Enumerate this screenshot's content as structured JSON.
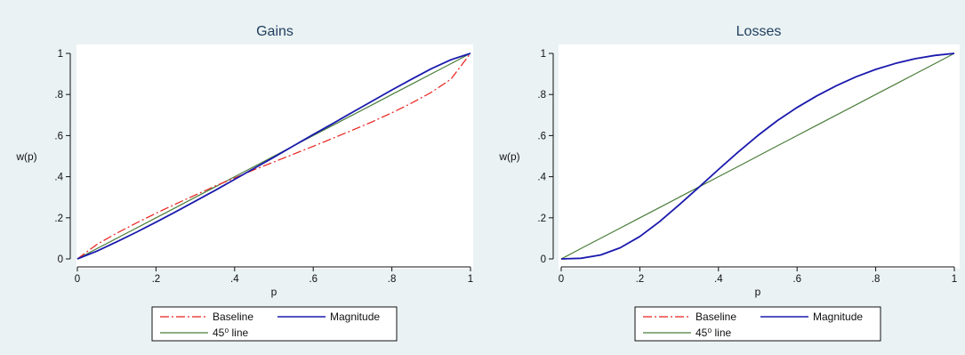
{
  "chart_data": [
    {
      "type": "line",
      "title": "Gains",
      "xlabel": "p",
      "ylabel": "w(p)",
      "xlim": [
        0,
        1
      ],
      "ylim": [
        0,
        1
      ],
      "xticks": [
        "0",
        ".2",
        ".4",
        ".6",
        ".8",
        "1"
      ],
      "yticks": [
        "0",
        ".2",
        ".4",
        ".6",
        ".8",
        "1"
      ],
      "grid": false,
      "legend_position": "bottom",
      "x": [
        0,
        0.05,
        0.1,
        0.15,
        0.2,
        0.25,
        0.3,
        0.35,
        0.4,
        0.45,
        0.5,
        0.55,
        0.6,
        0.65,
        0.7,
        0.75,
        0.8,
        0.85,
        0.9,
        0.95,
        1
      ],
      "series": [
        {
          "name": "Baseline",
          "color": "#e8201c",
          "dash": "dashdot",
          "values": [
            0,
            0.071,
            0.125,
            0.175,
            0.222,
            0.267,
            0.311,
            0.354,
            0.394,
            0.434,
            0.472,
            0.51,
            0.548,
            0.587,
            0.627,
            0.667,
            0.711,
            0.758,
            0.81,
            0.874,
            1
          ]
        },
        {
          "name": "Magnitude",
          "color": "#1a1aae",
          "dash": "solid",
          "values": [
            0,
            0.038,
            0.083,
            0.13,
            0.179,
            0.229,
            0.281,
            0.333,
            0.387,
            0.441,
            0.495,
            0.55,
            0.605,
            0.659,
            0.714,
            0.768,
            0.822,
            0.874,
            0.925,
            0.969,
            1
          ]
        },
        {
          "name": "45⁰ line",
          "color": "#4a7d3a",
          "dash": "solid",
          "values": [
            0,
            0.05,
            0.1,
            0.15,
            0.2,
            0.25,
            0.3,
            0.35,
            0.4,
            0.45,
            0.5,
            0.55,
            0.6,
            0.65,
            0.7,
            0.75,
            0.8,
            0.85,
            0.9,
            0.95,
            1
          ]
        }
      ]
    },
    {
      "type": "line",
      "title": "Losses",
      "xlabel": "p",
      "ylabel": "w(p)",
      "xlim": [
        0,
        1
      ],
      "ylim": [
        0,
        1
      ],
      "xticks": [
        "0",
        ".2",
        ".4",
        ".6",
        ".8",
        "1"
      ],
      "yticks": [
        "0",
        ".2",
        ".4",
        ".6",
        ".8",
        "1"
      ],
      "grid": false,
      "legend_position": "bottom",
      "x": [
        0,
        0.05,
        0.1,
        0.15,
        0.2,
        0.25,
        0.3,
        0.35,
        0.4,
        0.45,
        0.5,
        0.55,
        0.6,
        0.65,
        0.7,
        0.75,
        0.8,
        0.85,
        0.9,
        0.95,
        1
      ],
      "series": [
        {
          "name": "Baseline",
          "color": "#e8201c",
          "dash": "dashdot",
          "values": [
            0,
            0.003,
            0.019,
            0.054,
            0.109,
            0.181,
            0.263,
            0.348,
            0.435,
            0.52,
            0.6,
            0.673,
            0.737,
            0.793,
            0.843,
            0.886,
            0.922,
            0.951,
            0.974,
            0.99,
            1
          ]
        },
        {
          "name": "Magnitude",
          "color": "#1a1aae",
          "dash": "solid",
          "values": [
            0,
            0.003,
            0.019,
            0.054,
            0.109,
            0.181,
            0.263,
            0.348,
            0.435,
            0.52,
            0.6,
            0.673,
            0.737,
            0.793,
            0.843,
            0.886,
            0.922,
            0.951,
            0.974,
            0.99,
            1
          ]
        },
        {
          "name": "45⁰ line",
          "color": "#4a7d3a",
          "dash": "solid",
          "values": [
            0,
            0.05,
            0.1,
            0.15,
            0.2,
            0.25,
            0.3,
            0.35,
            0.4,
            0.45,
            0.5,
            0.55,
            0.6,
            0.65,
            0.7,
            0.75,
            0.8,
            0.85,
            0.9,
            0.95,
            1
          ]
        }
      ]
    }
  ],
  "colors": {
    "outer_background": "#eaf2f3",
    "plot_background": "#ffffff",
    "title_color": "#1e3d5e",
    "axis_color": "#111111"
  }
}
